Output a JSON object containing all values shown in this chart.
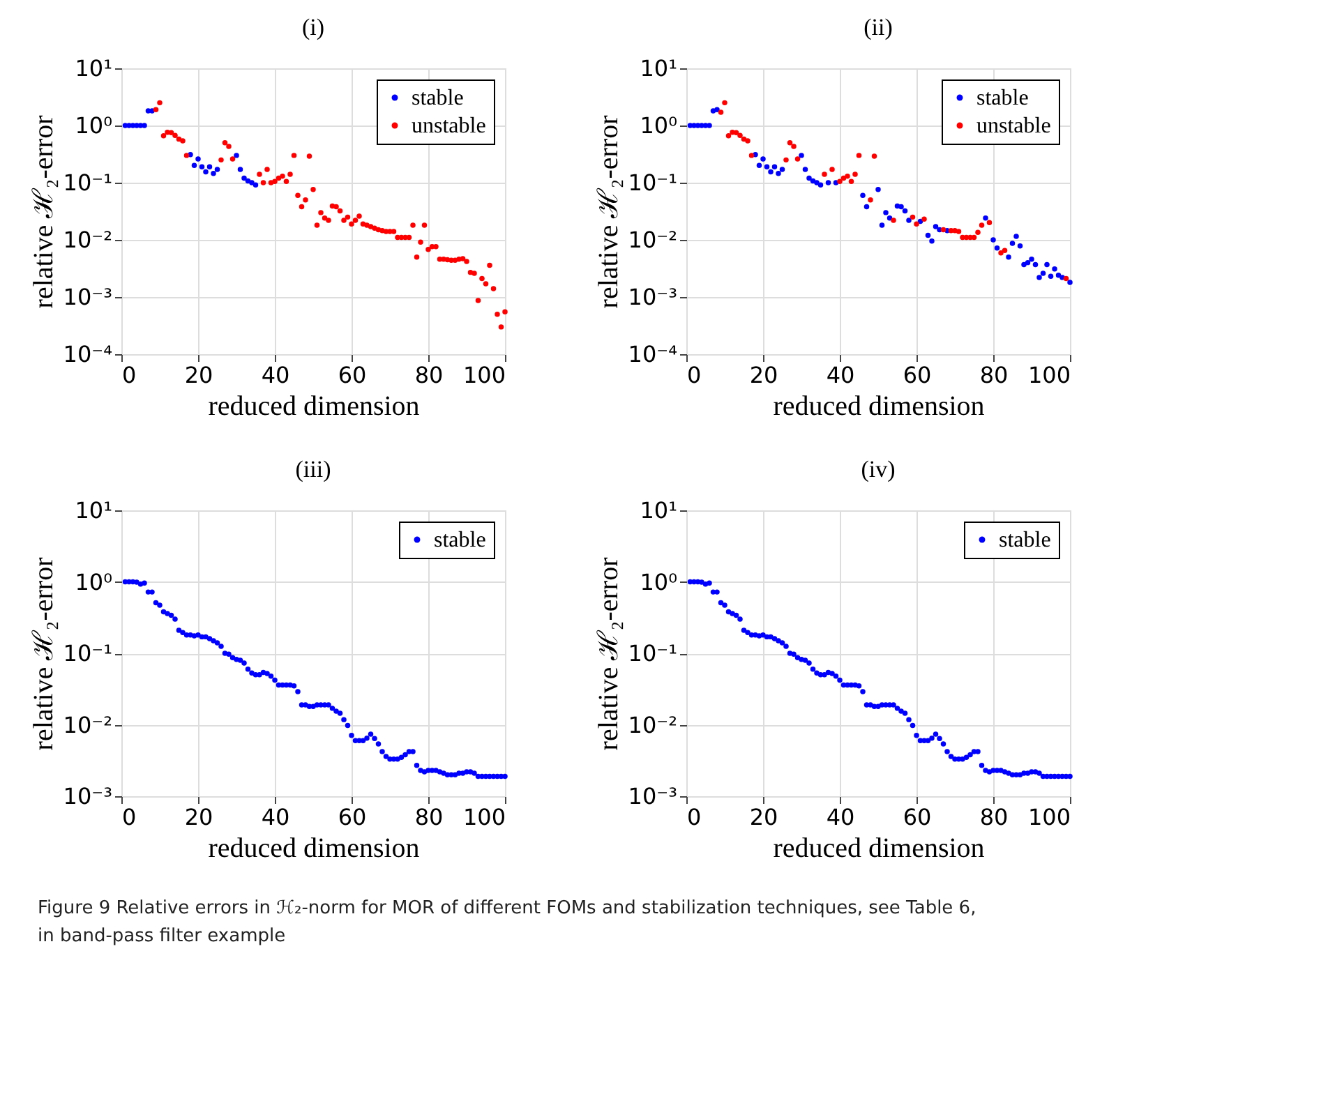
{
  "chart_data": [
    {
      "type": "scatter",
      "title": "(i)",
      "xlabel": "reduced dimension",
      "ylabel": "relative ℋ₂-error",
      "log": "y",
      "grid": true,
      "legend": "top right",
      "marker": "circle",
      "xlim": [
        0,
        100
      ],
      "xticks": [
        0,
        20,
        40,
        60,
        80,
        100
      ],
      "ylim": [
        0.0001,
        10
      ],
      "yticks": [
        {
          "value": 0.0001,
          "label": "10⁻⁴"
        },
        {
          "value": 0.001,
          "label": "10⁻³"
        },
        {
          "value": 0.01,
          "label": "10⁻²"
        },
        {
          "value": 0.1,
          "label": "10⁻¹"
        },
        {
          "value": 1,
          "label": "10⁰"
        },
        {
          "value": 10,
          "label": "10¹"
        }
      ],
      "series": [
        {
          "name": "stable",
          "color": "#0000ff",
          "x": [
            1,
            2,
            3,
            4,
            5,
            6,
            7,
            8,
            18,
            19,
            20,
            21,
            22,
            23,
            24,
            25,
            30,
            31,
            32,
            33,
            34,
            35
          ],
          "values": [
            1.0,
            1.0,
            1.0,
            1.0,
            1.0,
            1.0,
            1.8,
            1.8,
            0.31,
            0.2,
            0.26,
            0.19,
            0.155,
            0.19,
            0.145,
            0.17,
            0.3,
            0.17,
            0.12,
            0.107,
            0.1,
            0.091
          ]
        },
        {
          "name": "unstable",
          "color": "#ff0000",
          "x": [
            9,
            10,
            11,
            12,
            13,
            14,
            15,
            16,
            17,
            26,
            27,
            28,
            29,
            36,
            37,
            38,
            39,
            40,
            41,
            42,
            43,
            44,
            45,
            46,
            47,
            48,
            49,
            50,
            51,
            52,
            53,
            54,
            55,
            56,
            57,
            58,
            59,
            60,
            61,
            62,
            63,
            64,
            65,
            66,
            67,
            68,
            69,
            70,
            71,
            72,
            73,
            74,
            75,
            76,
            77,
            78,
            79,
            80,
            81,
            82,
            83,
            84,
            85,
            86,
            87,
            88,
            89,
            90,
            91,
            92,
            93,
            94,
            95,
            96,
            97,
            98,
            99,
            100
          ],
          "values": [
            1.9,
            2.5,
            0.66,
            0.76,
            0.75,
            0.67,
            0.58,
            0.54,
            0.3,
            0.25,
            0.5,
            0.43,
            0.26,
            0.14,
            0.1,
            0.17,
            0.1,
            0.105,
            0.12,
            0.13,
            0.105,
            0.14,
            0.3,
            0.06,
            0.038,
            0.05,
            0.29,
            0.076,
            0.018,
            0.03,
            0.024,
            0.022,
            0.039,
            0.038,
            0.032,
            0.022,
            0.025,
            0.019,
            0.022,
            0.026,
            0.019,
            0.018,
            0.017,
            0.016,
            0.015,
            0.0145,
            0.014,
            0.014,
            0.014,
            0.011,
            0.011,
            0.011,
            0.011,
            0.018,
            0.005,
            0.0091,
            0.018,
            0.0068,
            0.0076,
            0.0076,
            0.0046,
            0.0046,
            0.0045,
            0.0044,
            0.0044,
            0.0046,
            0.0047,
            0.0042,
            0.0027,
            0.0026,
            0.00087,
            0.0021,
            0.0017,
            0.0036,
            0.0014,
            0.0005,
            0.0003,
            0.00055
          ]
        }
      ]
    },
    {
      "type": "scatter",
      "title": "(ii)",
      "xlabel": "reduced dimension",
      "ylabel": "relative ℋ₂-error",
      "log": "y",
      "grid": true,
      "legend": "top right",
      "marker": "circle",
      "xlim": [
        0,
        100
      ],
      "xticks": [
        0,
        20,
        40,
        60,
        80,
        100
      ],
      "ylim": [
        0.0001,
        10
      ],
      "yticks": [
        {
          "value": 0.0001,
          "label": "10⁻⁴"
        },
        {
          "value": 0.001,
          "label": "10⁻³"
        },
        {
          "value": 0.01,
          "label": "10⁻²"
        },
        {
          "value": 0.1,
          "label": "10⁻¹"
        },
        {
          "value": 1,
          "label": "10⁰"
        },
        {
          "value": 10,
          "label": "10¹"
        }
      ],
      "series": [
        {
          "name": "stable",
          "color": "#0000ff",
          "x": [
            1,
            2,
            3,
            4,
            5,
            6,
            7,
            8,
            18,
            19,
            20,
            21,
            22,
            23,
            24,
            25,
            30,
            31,
            32,
            33,
            34,
            35,
            37,
            39,
            46,
            47,
            50,
            51,
            52,
            53,
            55,
            56,
            57,
            58,
            61,
            63,
            64,
            65,
            66,
            68,
            78,
            80,
            81,
            84,
            85,
            86,
            87,
            88,
            89,
            90,
            91,
            92,
            93,
            94,
            95,
            96,
            97,
            98,
            100
          ],
          "values": [
            1.0,
            1.0,
            1.0,
            1.0,
            1.0,
            1.0,
            1.8,
            1.9,
            0.31,
            0.2,
            0.26,
            0.19,
            0.155,
            0.19,
            0.145,
            0.17,
            0.3,
            0.17,
            0.12,
            0.107,
            0.1,
            0.091,
            0.1,
            0.1,
            0.06,
            0.038,
            0.076,
            0.018,
            0.03,
            0.024,
            0.039,
            0.038,
            0.032,
            0.022,
            0.021,
            0.012,
            0.0095,
            0.017,
            0.015,
            0.0145,
            0.024,
            0.01,
            0.0072,
            0.005,
            0.0087,
            0.0115,
            0.0078,
            0.0037,
            0.004,
            0.0046,
            0.0037,
            0.0022,
            0.0026,
            0.0037,
            0.0023,
            0.0031,
            0.0024,
            0.0022,
            0.0018
          ]
        },
        {
          "name": "unstable",
          "color": "#ff0000",
          "x": [
            9,
            10,
            11,
            12,
            13,
            14,
            15,
            16,
            17,
            26,
            27,
            28,
            29,
            36,
            38,
            40,
            41,
            42,
            43,
            44,
            45,
            48,
            49,
            54,
            59,
            60,
            62,
            67,
            69,
            70,
            71,
            72,
            73,
            74,
            75,
            76,
            77,
            79,
            82,
            83,
            99
          ],
          "values": [
            1.7,
            2.5,
            0.66,
            0.76,
            0.75,
            0.67,
            0.58,
            0.54,
            0.3,
            0.25,
            0.5,
            0.43,
            0.26,
            0.14,
            0.17,
            0.105,
            0.12,
            0.13,
            0.105,
            0.14,
            0.3,
            0.05,
            0.29,
            0.022,
            0.025,
            0.019,
            0.023,
            0.015,
            0.0145,
            0.0145,
            0.014,
            0.011,
            0.011,
            0.011,
            0.011,
            0.0135,
            0.018,
            0.02,
            0.0059,
            0.0065,
            0.0021
          ]
        }
      ]
    },
    {
      "type": "scatter",
      "title": "(iii)",
      "xlabel": "reduced dimension",
      "ylabel": "relative ℋ₂-error",
      "log": "y",
      "grid": true,
      "legend": "top right",
      "marker": "circle",
      "xlim": [
        0,
        100
      ],
      "xticks": [
        0,
        20,
        40,
        60,
        80,
        100
      ],
      "ylim": [
        0.001,
        10
      ],
      "yticks": [
        {
          "value": 0.001,
          "label": "10⁻³"
        },
        {
          "value": 0.01,
          "label": "10⁻²"
        },
        {
          "value": 0.1,
          "label": "10⁻¹"
        },
        {
          "value": 1,
          "label": "10⁰"
        },
        {
          "value": 10,
          "label": "10¹"
        }
      ],
      "x": [
        1,
        2,
        3,
        4,
        5,
        6,
        7,
        8,
        9,
        10,
        11,
        12,
        13,
        14,
        15,
        16,
        17,
        18,
        19,
        20,
        21,
        22,
        23,
        24,
        25,
        26,
        27,
        28,
        29,
        30,
        31,
        32,
        33,
        34,
        35,
        36,
        37,
        38,
        39,
        40,
        41,
        42,
        43,
        44,
        45,
        46,
        47,
        48,
        49,
        50,
        51,
        52,
        53,
        54,
        55,
        56,
        57,
        58,
        59,
        60,
        61,
        62,
        63,
        64,
        65,
        66,
        67,
        68,
        69,
        70,
        71,
        72,
        73,
        74,
        75,
        76,
        77,
        78,
        79,
        80,
        81,
        82,
        83,
        84,
        85,
        86,
        87,
        88,
        89,
        90,
        91,
        92,
        93,
        94,
        95,
        96,
        97,
        98,
        99,
        100
      ],
      "series": [
        {
          "name": "stable",
          "color": "#0000ff",
          "values": [
            1.0,
            1.0,
            1.0,
            0.99,
            0.93,
            0.96,
            0.72,
            0.72,
            0.51,
            0.47,
            0.38,
            0.36,
            0.34,
            0.3,
            0.21,
            0.195,
            0.18,
            0.18,
            0.175,
            0.18,
            0.17,
            0.17,
            0.16,
            0.15,
            0.14,
            0.125,
            0.1,
            0.097,
            0.087,
            0.082,
            0.08,
            0.073,
            0.06,
            0.053,
            0.05,
            0.05,
            0.054,
            0.052,
            0.048,
            0.042,
            0.036,
            0.036,
            0.036,
            0.036,
            0.035,
            0.029,
            0.019,
            0.019,
            0.018,
            0.018,
            0.019,
            0.019,
            0.019,
            0.019,
            0.017,
            0.0155,
            0.0145,
            0.0118,
            0.0098,
            0.0071,
            0.006,
            0.006,
            0.006,
            0.0065,
            0.0074,
            0.0064,
            0.0054,
            0.0042,
            0.0036,
            0.0033,
            0.0033,
            0.0033,
            0.0035,
            0.0038,
            0.0042,
            0.0042,
            0.0027,
            0.0023,
            0.0022,
            0.0023,
            0.0023,
            0.0023,
            0.0022,
            0.0021,
            0.002,
            0.002,
            0.002,
            0.0021,
            0.0021,
            0.0022,
            0.0022,
            0.0021,
            0.0019,
            0.0019,
            0.0019,
            0.0019,
            0.0019,
            0.0019,
            0.0019,
            0.0019
          ]
        }
      ]
    },
    {
      "type": "scatter",
      "title": "(iv)",
      "xlabel": "reduced dimension",
      "ylabel": "relative ℋ₂-error",
      "log": "y",
      "grid": true,
      "legend": "top right",
      "marker": "circle",
      "xlim": [
        0,
        100
      ],
      "xticks": [
        0,
        20,
        40,
        60,
        80,
        100
      ],
      "ylim": [
        0.001,
        10
      ],
      "yticks": [
        {
          "value": 0.001,
          "label": "10⁻³"
        },
        {
          "value": 0.01,
          "label": "10⁻²"
        },
        {
          "value": 0.1,
          "label": "10⁻¹"
        },
        {
          "value": 1,
          "label": "10⁰"
        },
        {
          "value": 10,
          "label": "10¹"
        }
      ],
      "x": [
        1,
        2,
        3,
        4,
        5,
        6,
        7,
        8,
        9,
        10,
        11,
        12,
        13,
        14,
        15,
        16,
        17,
        18,
        19,
        20,
        21,
        22,
        23,
        24,
        25,
        26,
        27,
        28,
        29,
        30,
        31,
        32,
        33,
        34,
        35,
        36,
        37,
        38,
        39,
        40,
        41,
        42,
        43,
        44,
        45,
        46,
        47,
        48,
        49,
        50,
        51,
        52,
        53,
        54,
        55,
        56,
        57,
        58,
        59,
        60,
        61,
        62,
        63,
        64,
        65,
        66,
        67,
        68,
        69,
        70,
        71,
        72,
        73,
        74,
        75,
        76,
        77,
        78,
        79,
        80,
        81,
        82,
        83,
        84,
        85,
        86,
        87,
        88,
        89,
        90,
        91,
        92,
        93,
        94,
        95,
        96,
        97,
        98,
        99,
        100
      ],
      "series": [
        {
          "name": "stable",
          "color": "#0000ff",
          "values": [
            1.0,
            1.0,
            1.0,
            0.99,
            0.93,
            0.96,
            0.72,
            0.72,
            0.51,
            0.47,
            0.38,
            0.36,
            0.34,
            0.3,
            0.21,
            0.195,
            0.18,
            0.18,
            0.175,
            0.18,
            0.17,
            0.17,
            0.16,
            0.15,
            0.14,
            0.125,
            0.1,
            0.097,
            0.087,
            0.082,
            0.08,
            0.073,
            0.06,
            0.053,
            0.05,
            0.05,
            0.054,
            0.052,
            0.048,
            0.042,
            0.036,
            0.036,
            0.036,
            0.036,
            0.035,
            0.029,
            0.019,
            0.019,
            0.018,
            0.018,
            0.019,
            0.019,
            0.019,
            0.019,
            0.017,
            0.0155,
            0.0145,
            0.0118,
            0.0098,
            0.0071,
            0.006,
            0.006,
            0.006,
            0.0065,
            0.0074,
            0.0064,
            0.0054,
            0.0042,
            0.0036,
            0.0033,
            0.0033,
            0.0033,
            0.0035,
            0.0038,
            0.0042,
            0.0042,
            0.0027,
            0.0023,
            0.0022,
            0.0023,
            0.0023,
            0.0023,
            0.0022,
            0.0021,
            0.002,
            0.002,
            0.002,
            0.0021,
            0.0021,
            0.0022,
            0.0022,
            0.0021,
            0.0019,
            0.0019,
            0.0019,
            0.0019,
            0.0019,
            0.0019,
            0.0019,
            0.0019
          ]
        }
      ],
      "annotations": [
        "Figure 9  Relative errors in ℋ₂-norm for MOR of different FOMs and stabilization techniques, see Table 6, in band-pass filter example"
      ]
    }
  ]
}
